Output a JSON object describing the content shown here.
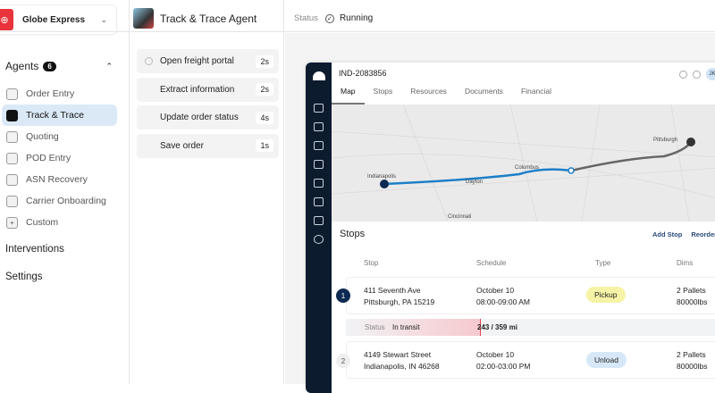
{
  "org": {
    "name": "Globe Express"
  },
  "agents": {
    "title": "Agents",
    "count": "6",
    "items": [
      {
        "label": "Order Entry",
        "icon": "monitor-icon"
      },
      {
        "label": "Track & Trace",
        "icon": "calendar-icon",
        "active": true
      },
      {
        "label": "Quoting",
        "icon": "document-icon"
      },
      {
        "label": "POD Entry",
        "icon": "clipboard-icon"
      },
      {
        "label": "ASN Recovery",
        "icon": "settings-icon"
      },
      {
        "label": "Carrier Onboarding",
        "icon": "truck-icon"
      },
      {
        "label": "Custom",
        "icon": "plus-icon"
      }
    ]
  },
  "sections": {
    "interventions": "Interventions",
    "settings": "Settings"
  },
  "agent": {
    "title": "Track & Trace Agent",
    "status_label": "Status",
    "status": "Running"
  },
  "steps": [
    {
      "label": "Open freight portal",
      "dur": "2s"
    },
    {
      "label": "Extract information",
      "dur": "2s"
    },
    {
      "label": "Update order status",
      "dur": "4s"
    },
    {
      "label": "Save order",
      "dur": "1s"
    }
  ],
  "app": {
    "order_id": "IND-2083856",
    "avatar": "JK",
    "tabs": [
      "Map",
      "Stops",
      "Resources",
      "Documents",
      "Financial"
    ],
    "map_labels": [
      "Indianapolis",
      "Dayton",
      "Columbus",
      "Cincinnati",
      "Pittsburgh"
    ],
    "stops_title": "Stops",
    "add_stop": "Add Stop",
    "reorder": "Reorder s",
    "columns": [
      "Stop",
      "Schedule",
      "Type",
      "Dims"
    ],
    "stops": [
      {
        "n": "1",
        "addr1": "411 Seventh Ave",
        "addr2": "Pittsburgh, PA 15219",
        "date": "October 10",
        "time": "08:00-09:00 AM",
        "type": "Pickup",
        "dims1": "2 Pallets",
        "dims2": "80000lbs"
      },
      {
        "n": "2",
        "addr1": "4149 Stewart Street",
        "addr2": "Indianapolis, IN 46268",
        "date": "October 10",
        "time": "02:00-03:00 PM",
        "type": "Unload",
        "dims1": "2 Pallets",
        "dims2": "80000lbs"
      }
    ],
    "transit": {
      "label": "Status",
      "value": "In transit",
      "distance": "243 / 359 mi",
      "progress": 0.68
    },
    "colors": {
      "route": "#1e7fc8",
      "pickup": "#f7f3a6",
      "unload": "#d6e8f7",
      "nav": "#0d1b2e"
    }
  }
}
